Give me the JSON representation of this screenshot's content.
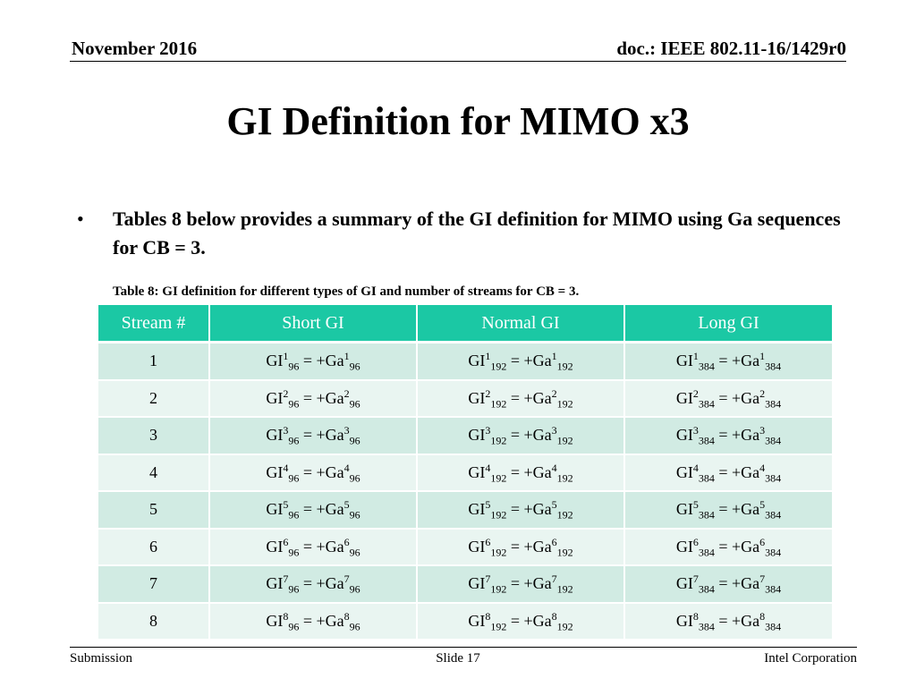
{
  "header": {
    "date": "November 2016",
    "doc": "doc.: IEEE 802.11-16/1429r0"
  },
  "title": "GI Definition for MIMO x3",
  "bullet": "Tables 8 below provides a summary of the GI definition for MIMO using Ga sequences for CB = 3.",
  "table": {
    "caption": "Table 8: GI definition for different types of GI and number of streams for CB = 3.",
    "headers": [
      "Stream #",
      "Short GI",
      "Normal GI",
      "Long GI"
    ],
    "lengths": [
      "96",
      "192",
      "384"
    ],
    "gi_label": "GI",
    "ga_label": "= +Ga",
    "rows": [
      "1",
      "2",
      "3",
      "4",
      "5",
      "6",
      "7",
      "8"
    ]
  },
  "footer": {
    "left": "Submission",
    "center": "Slide 17",
    "right": "Intel Corporation"
  }
}
